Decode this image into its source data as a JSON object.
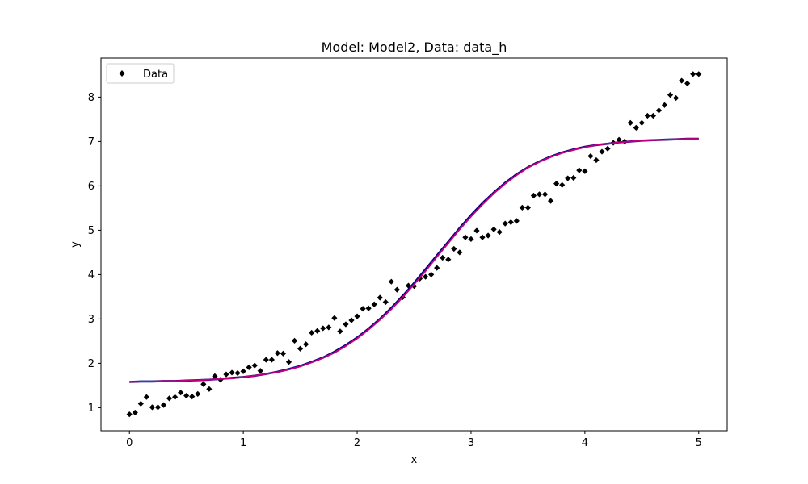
{
  "chart_data": {
    "type": "scatter",
    "title": "Model: Model2, Data: data_h",
    "xlabel": "x",
    "ylabel": "y",
    "xlim": [
      -0.25,
      5.25
    ],
    "ylim": [
      0.48,
      8.88
    ],
    "x_ticks": [
      "0",
      "1",
      "2",
      "3",
      "4",
      "5"
    ],
    "y_ticks": [
      "1",
      "2",
      "3",
      "4",
      "5",
      "6",
      "7",
      "8"
    ],
    "grid": false,
    "legend_position": "top-left",
    "series": [
      {
        "name": "Data",
        "kind": "scatter",
        "marker": "diamond",
        "color": "#000000",
        "x": [
          0.0,
          0.05,
          0.1,
          0.15,
          0.2,
          0.25,
          0.3,
          0.35,
          0.4,
          0.45,
          0.5,
          0.55,
          0.6,
          0.65,
          0.7,
          0.75,
          0.8,
          0.85,
          0.9,
          0.95,
          1.0,
          1.05,
          1.1,
          1.15,
          1.2,
          1.25,
          1.3,
          1.35,
          1.4,
          1.45,
          1.5,
          1.55,
          1.6,
          1.65,
          1.7,
          1.75,
          1.8,
          1.85,
          1.9,
          1.95,
          2.0,
          2.05,
          2.1,
          2.15,
          2.2,
          2.25,
          2.3,
          2.35,
          2.4,
          2.45,
          2.5,
          2.55,
          2.6,
          2.65,
          2.7,
          2.75,
          2.8,
          2.85,
          2.9,
          2.95,
          3.0,
          3.05,
          3.1,
          3.15,
          3.2,
          3.25,
          3.3,
          3.35,
          3.4,
          3.45,
          3.5,
          3.55,
          3.6,
          3.65,
          3.7,
          3.75,
          3.8,
          3.85,
          3.9,
          3.95,
          4.0,
          4.05,
          4.1,
          4.15,
          4.2,
          4.25,
          4.3,
          4.35,
          4.4,
          4.45,
          4.5,
          4.55,
          4.6,
          4.65,
          4.7,
          4.75,
          4.8,
          4.85,
          4.9,
          4.95,
          5.0
        ],
        "y": [
          0.85,
          0.89,
          1.09,
          1.24,
          1.01,
          1.01,
          1.06,
          1.21,
          1.24,
          1.34,
          1.27,
          1.25,
          1.31,
          1.53,
          1.42,
          1.71,
          1.63,
          1.75,
          1.79,
          1.78,
          1.82,
          1.91,
          1.95,
          1.83,
          2.08,
          2.08,
          2.23,
          2.22,
          2.03,
          2.51,
          2.33,
          2.43,
          2.69,
          2.73,
          2.79,
          2.81,
          3.02,
          2.72,
          2.88,
          2.97,
          3.06,
          3.23,
          3.24,
          3.33,
          3.48,
          3.38,
          3.84,
          3.66,
          3.49,
          3.75,
          3.74,
          3.91,
          3.95,
          4.0,
          4.15,
          4.38,
          4.34,
          4.58,
          4.5,
          4.84,
          4.8,
          4.99,
          4.84,
          4.88,
          5.02,
          4.96,
          5.15,
          5.18,
          5.21,
          5.51,
          5.51,
          5.78,
          5.81,
          5.81,
          5.66,
          6.05,
          6.02,
          6.17,
          6.18,
          6.35,
          6.33,
          6.67,
          6.58,
          6.77,
          6.84,
          6.97,
          7.04,
          7.0,
          7.42,
          7.31,
          7.42,
          7.58,
          7.58,
          7.7,
          7.82,
          8.05,
          7.98,
          8.37,
          8.31,
          8.52,
          8.52
        ]
      },
      {
        "name": "",
        "kind": "line",
        "color": "#000080",
        "x": [
          0.0,
          0.1,
          0.2,
          0.3,
          0.4,
          0.5,
          0.6,
          0.7,
          0.8,
          0.9,
          1.0,
          1.1,
          1.2,
          1.3,
          1.4,
          1.5,
          1.6,
          1.7,
          1.8,
          1.9,
          2.0,
          2.1,
          2.2,
          2.3,
          2.4,
          2.5,
          2.6,
          2.7,
          2.8,
          2.9,
          3.0,
          3.1,
          3.2,
          3.3,
          3.4,
          3.5,
          3.6,
          3.7,
          3.8,
          3.9,
          4.0,
          4.1,
          4.2,
          4.3,
          4.4,
          4.5,
          4.6,
          4.7,
          4.8,
          4.9,
          5.0
        ],
        "y": [
          1.58,
          1.59,
          1.59,
          1.6,
          1.6,
          1.61,
          1.62,
          1.63,
          1.65,
          1.67,
          1.69,
          1.72,
          1.76,
          1.81,
          1.87,
          1.94,
          2.03,
          2.13,
          2.26,
          2.41,
          2.58,
          2.78,
          3.0,
          3.25,
          3.52,
          3.81,
          4.12,
          4.43,
          4.74,
          5.05,
          5.34,
          5.61,
          5.85,
          6.07,
          6.26,
          6.42,
          6.55,
          6.66,
          6.75,
          6.82,
          6.88,
          6.92,
          6.95,
          6.98,
          7.0,
          7.02,
          7.03,
          7.04,
          7.05,
          7.06,
          7.06
        ]
      },
      {
        "name": "",
        "kind": "line",
        "color": "#C0007F",
        "x": [
          0.0,
          0.1,
          0.2,
          0.3,
          0.4,
          0.5,
          0.6,
          0.7,
          0.8,
          0.9,
          1.0,
          1.1,
          1.2,
          1.3,
          1.4,
          1.5,
          1.6,
          1.7,
          1.8,
          1.9,
          2.0,
          2.1,
          2.2,
          2.3,
          2.4,
          2.5,
          2.6,
          2.7,
          2.8,
          2.9,
          3.0,
          3.1,
          3.2,
          3.3,
          3.4,
          3.5,
          3.6,
          3.7,
          3.8,
          3.9,
          4.0,
          4.1,
          4.2,
          4.3,
          4.4,
          4.5,
          4.6,
          4.7,
          4.8,
          4.9,
          5.0
        ],
        "y": [
          1.58,
          1.59,
          1.59,
          1.6,
          1.6,
          1.61,
          1.62,
          1.63,
          1.65,
          1.66,
          1.69,
          1.72,
          1.76,
          1.8,
          1.86,
          1.93,
          2.02,
          2.12,
          2.24,
          2.39,
          2.56,
          2.76,
          2.98,
          3.22,
          3.49,
          3.78,
          4.08,
          4.4,
          4.71,
          5.02,
          5.31,
          5.58,
          5.83,
          6.05,
          6.24,
          6.41,
          6.54,
          6.65,
          6.74,
          6.81,
          6.87,
          6.92,
          6.95,
          6.98,
          7.0,
          7.02,
          7.03,
          7.04,
          7.05,
          7.06,
          7.06
        ]
      }
    ]
  }
}
